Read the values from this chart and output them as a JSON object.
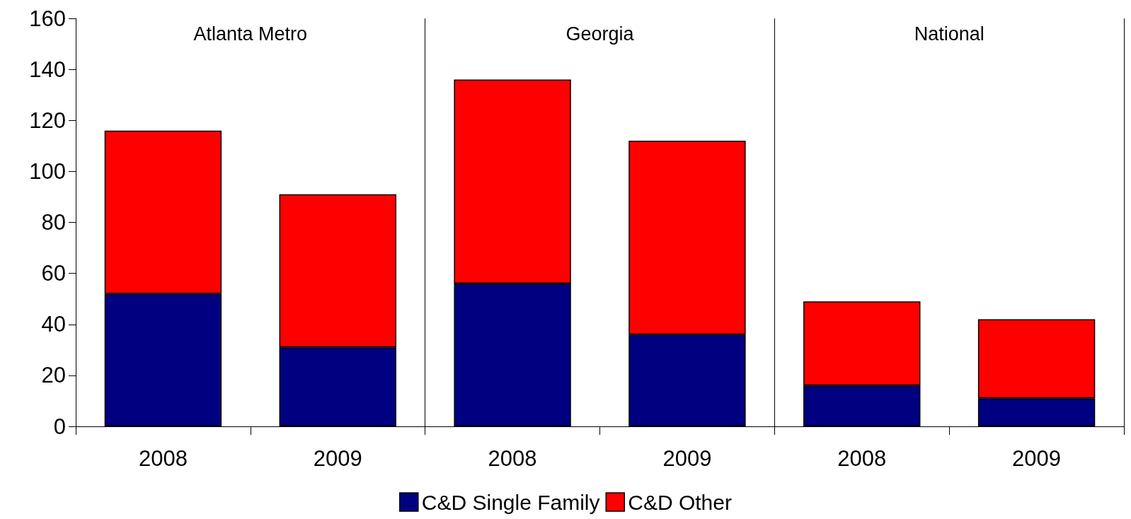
{
  "chart_data": {
    "type": "bar",
    "stacked": true,
    "categories": [
      "2008",
      "2009",
      "2008",
      "2009",
      "2008",
      "2009"
    ],
    "series": [
      {
        "name": "C&D Single Family",
        "color": "#000080",
        "values": [
          52,
          31,
          56,
          36,
          16,
          11
        ]
      },
      {
        "name": "C&D Other",
        "color": "#ff0000",
        "values": [
          64,
          60,
          80,
          76,
          33,
          31
        ]
      }
    ],
    "ylim": [
      0,
      160
    ],
    "yticks": [
      0,
      20,
      40,
      60,
      80,
      100,
      120,
      140,
      160
    ],
    "annotations": [
      "Atlanta Metro",
      "Georgia",
      "National"
    ],
    "grid": false,
    "legend": "bottom"
  }
}
